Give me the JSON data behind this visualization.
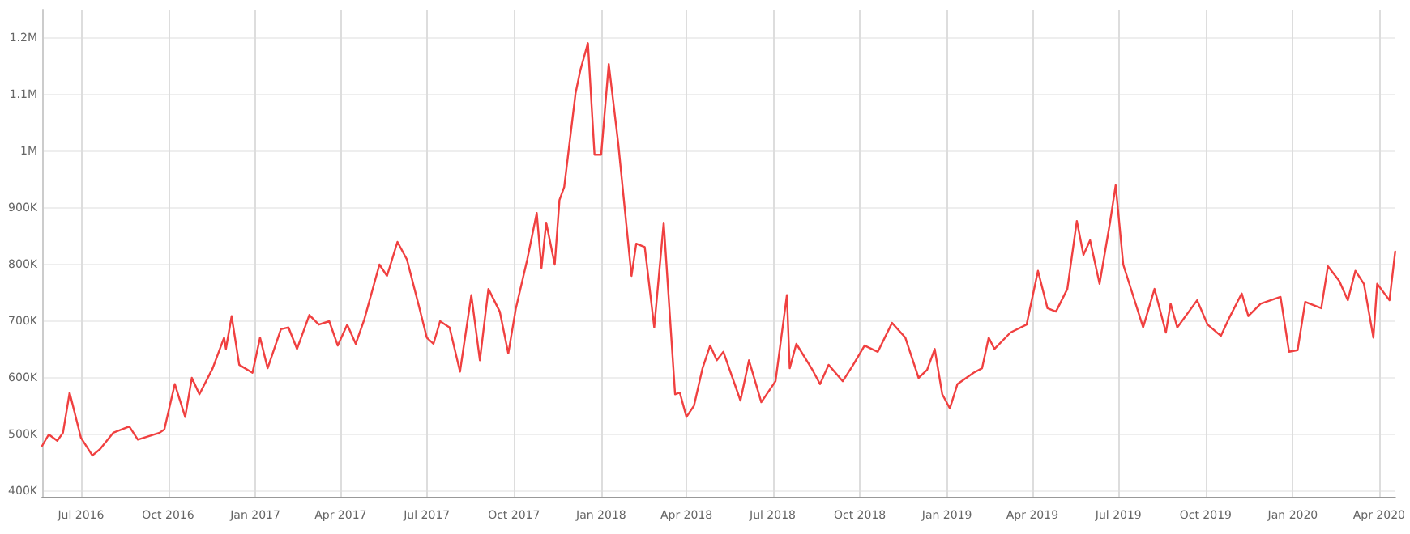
{
  "chart_data": {
    "type": "line",
    "color": "#f04040",
    "grid": true,
    "marker": "none",
    "line_style": "solid",
    "xlim": [
      "2016-05-21",
      "2020-04-18"
    ],
    "xticks": [
      {
        "value": "2016-07-01",
        "label": "Jul 2016"
      },
      {
        "value": "2016-10-01",
        "label": "Oct 2016"
      },
      {
        "value": "2017-01-01",
        "label": "Jan 2017"
      },
      {
        "value": "2017-04-01",
        "label": "Apr 2017"
      },
      {
        "value": "2017-07-01",
        "label": "Jul 2017"
      },
      {
        "value": "2017-10-01",
        "label": "Oct 2017"
      },
      {
        "value": "2018-01-01",
        "label": "Jan 2018"
      },
      {
        "value": "2018-04-01",
        "label": "Apr 2018"
      },
      {
        "value": "2018-07-01",
        "label": "Jul 2018"
      },
      {
        "value": "2018-10-01",
        "label": "Oct 2018"
      },
      {
        "value": "2019-01-01",
        "label": "Jan 2019"
      },
      {
        "value": "2019-04-01",
        "label": "Apr 2019"
      },
      {
        "value": "2019-07-01",
        "label": "Jul 2019"
      },
      {
        "value": "2019-10-01",
        "label": "Oct 2019"
      },
      {
        "value": "2020-01-01",
        "label": "Jan 2020"
      },
      {
        "value": "2020-04-01",
        "label": "Apr 2020"
      }
    ],
    "ylim": [
      390000,
      1250000
    ],
    "yticks": [
      {
        "value": 400000,
        "label": "400K"
      },
      {
        "value": 500000,
        "label": "500K"
      },
      {
        "value": 600000,
        "label": "600K"
      },
      {
        "value": 700000,
        "label": "700K"
      },
      {
        "value": 800000,
        "label": "800K"
      },
      {
        "value": 900000,
        "label": "900K"
      },
      {
        "value": 1000000,
        "label": "1M"
      },
      {
        "value": 1100000,
        "label": "1.1M"
      },
      {
        "value": 1200000,
        "label": "1.2M"
      }
    ],
    "x": [
      "2016-05-21",
      "2016-05-28",
      "2016-06-06",
      "2016-06-12",
      "2016-06-19",
      "2016-07-01",
      "2016-07-13",
      "2016-07-21",
      "2016-08-04",
      "2016-08-21",
      "2016-08-30",
      "2016-09-22",
      "2016-09-27",
      "2016-10-08",
      "2016-10-19",
      "2016-10-26",
      "2016-11-03",
      "2016-11-17",
      "2016-11-29",
      "2016-12-01",
      "2016-12-07",
      "2016-12-15",
      "2016-12-29",
      "2017-01-06",
      "2017-01-14",
      "2017-01-28",
      "2017-02-05",
      "2017-02-14",
      "2017-02-27",
      "2017-03-09",
      "2017-03-20",
      "2017-03-29",
      "2017-04-08",
      "2017-04-17",
      "2017-04-26",
      "2017-05-12",
      "2017-05-20",
      "2017-05-31",
      "2017-06-10",
      "2017-06-22",
      "2017-07-01",
      "2017-07-08",
      "2017-07-15",
      "2017-07-25",
      "2017-08-05",
      "2017-08-17",
      "2017-08-26",
      "2017-09-04",
      "2017-09-16",
      "2017-09-25",
      "2017-10-03",
      "2017-10-15",
      "2017-10-25",
      "2017-10-30",
      "2017-11-04",
      "2017-11-13",
      "2017-11-18",
      "2017-11-23",
      "2017-12-05",
      "2017-12-10",
      "2017-12-18",
      "2017-12-25",
      "2018-01-01",
      "2018-01-09",
      "2018-01-19",
      "2018-02-02",
      "2018-02-07",
      "2018-02-16",
      "2018-02-26",
      "2018-03-08",
      "2018-03-20",
      "2018-03-25",
      "2018-04-01",
      "2018-04-09",
      "2018-04-18",
      "2018-04-26",
      "2018-05-03",
      "2018-05-10",
      "2018-05-28",
      "2018-06-06",
      "2018-06-19",
      "2018-07-04",
      "2018-07-16",
      "2018-07-19",
      "2018-07-26",
      "2018-08-12",
      "2018-08-20",
      "2018-08-29",
      "2018-09-13",
      "2018-09-24",
      "2018-10-06",
      "2018-10-20",
      "2018-11-04",
      "2018-11-18",
      "2018-12-02",
      "2018-12-11",
      "2018-12-19",
      "2018-12-27",
      "2019-01-04",
      "2019-01-12",
      "2019-01-29",
      "2019-02-07",
      "2019-02-14",
      "2019-02-20",
      "2019-03-09",
      "2019-03-26",
      "2019-04-07",
      "2019-04-17",
      "2019-04-26",
      "2019-05-08",
      "2019-05-18",
      "2019-05-25",
      "2019-06-01",
      "2019-06-11",
      "2019-06-22",
      "2019-06-28",
      "2019-07-06",
      "2019-07-27",
      "2019-08-08",
      "2019-08-20",
      "2019-08-25",
      "2019-09-01",
      "2019-09-22",
      "2019-10-03",
      "2019-10-17",
      "2019-10-25",
      "2019-11-08",
      "2019-11-15",
      "2019-11-28",
      "2019-12-19",
      "2019-12-28",
      "2020-01-06",
      "2020-01-14",
      "2020-01-31",
      "2020-02-07",
      "2020-02-19",
      "2020-02-28",
      "2020-03-07",
      "2020-03-16",
      "2020-03-26",
      "2020-03-30",
      "2020-04-12",
      "2020-04-18"
    ],
    "values": [
      480000,
      500000,
      489000,
      503000,
      574000,
      494000,
      463000,
      474000,
      503000,
      514000,
      491000,
      503000,
      509000,
      589000,
      531000,
      600000,
      571000,
      617000,
      671000,
      651000,
      709000,
      623000,
      609000,
      671000,
      617000,
      686000,
      689000,
      651000,
      711000,
      694000,
      700000,
      657000,
      694000,
      660000,
      703000,
      800000,
      780000,
      840000,
      809000,
      731000,
      671000,
      660000,
      700000,
      689000,
      611000,
      746000,
      631000,
      757000,
      717000,
      643000,
      723000,
      809000,
      891000,
      794000,
      874000,
      800000,
      914000,
      937000,
      1103000,
      1143000,
      1191000,
      994000,
      994000,
      1154000,
      1014000,
      780000,
      837000,
      831000,
      689000,
      874000,
      571000,
      574000,
      531000,
      551000,
      617000,
      657000,
      631000,
      646000,
      560000,
      631000,
      557000,
      594000,
      746000,
      617000,
      660000,
      614000,
      589000,
      623000,
      594000,
      623000,
      657000,
      646000,
      697000,
      671000,
      600000,
      614000,
      651000,
      571000,
      546000,
      589000,
      609000,
      617000,
      671000,
      651000,
      680000,
      694000,
      789000,
      723000,
      717000,
      757000,
      877000,
      817000,
      843000,
      766000,
      874000,
      940000,
      800000,
      689000,
      757000,
      680000,
      731000,
      689000,
      737000,
      694000,
      674000,
      703000,
      749000,
      709000,
      731000,
      743000,
      646000,
      649000,
      734000,
      723000,
      797000,
      771000,
      737000,
      789000,
      766000,
      671000,
      766000,
      737000,
      823000
    ]
  }
}
